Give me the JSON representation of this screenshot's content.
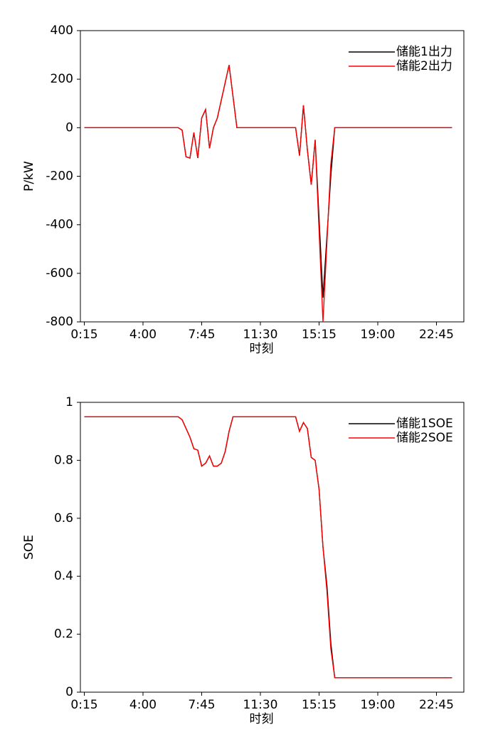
{
  "chart_data": [
    {
      "type": "line",
      "y_label": "P/kW",
      "x_label": "时刻",
      "x": [
        0.25,
        6.25,
        6.5,
        6.75,
        7.0,
        7.25,
        7.5,
        7.75,
        8.0,
        8.25,
        8.5,
        8.75,
        9.5,
        10.0,
        13.75,
        14.0,
        14.25,
        14.5,
        14.75,
        15.0,
        15.5,
        16.0,
        16.25,
        23.75
      ],
      "series": [
        {
          "name": "储能1出力",
          "color": "#000000",
          "values": [
            0,
            0,
            -10,
            -120,
            -125,
            -20,
            -125,
            40,
            75,
            -85,
            0,
            40,
            258,
            0,
            0,
            -115,
            92,
            -90,
            -235,
            -50,
            -700,
            -200,
            0,
            0
          ]
        },
        {
          "name": "储能2出力",
          "color": "#ff0000",
          "values": [
            0,
            0,
            -10,
            -120,
            -125,
            -20,
            -125,
            40,
            75,
            -85,
            0,
            40,
            258,
            0,
            0,
            -115,
            92,
            -90,
            -235,
            -50,
            -800,
            -150,
            0,
            0
          ]
        }
      ],
      "xlim": [
        0,
        24.5
      ],
      "xticks": [
        {
          "value": 0.25,
          "label": "0:15"
        },
        {
          "value": 4,
          "label": "4:00"
        },
        {
          "value": 7.75,
          "label": "7:45"
        },
        {
          "value": 11.5,
          "label": "11:30"
        },
        {
          "value": 15.25,
          "label": "15:15"
        },
        {
          "value": 19,
          "label": "19:00"
        },
        {
          "value": 22.75,
          "label": "22:45"
        }
      ],
      "ylim": [
        -800,
        400
      ],
      "yticks": [
        -800,
        -600,
        -400,
        -200,
        0,
        200,
        400
      ],
      "legend": "upper right"
    },
    {
      "type": "line",
      "y_label": "SOE",
      "x_label": "时刻",
      "x": [
        0.25,
        6.25,
        6.5,
        7.0,
        7.25,
        7.5,
        7.75,
        8.0,
        8.25,
        8.5,
        8.75,
        9.0,
        9.25,
        9.5,
        9.75,
        13.75,
        14.0,
        14.25,
        14.5,
        14.75,
        15.0,
        15.25,
        15.5,
        15.75,
        16.0,
        16.25,
        23.75
      ],
      "series": [
        {
          "name": "储能1SOE",
          "color": "#000000",
          "values": [
            0.95,
            0.95,
            0.94,
            0.88,
            0.84,
            0.835,
            0.78,
            0.79,
            0.815,
            0.78,
            0.78,
            0.79,
            0.83,
            0.9,
            0.95,
            0.95,
            0.9,
            0.93,
            0.91,
            0.81,
            0.8,
            0.7,
            0.5,
            0.37,
            0.17,
            0.05,
            0.05
          ]
        },
        {
          "name": "储能2SOE",
          "color": "#ff0000",
          "values": [
            0.95,
            0.95,
            0.94,
            0.88,
            0.84,
            0.835,
            0.78,
            0.79,
            0.815,
            0.78,
            0.78,
            0.79,
            0.83,
            0.9,
            0.95,
            0.95,
            0.9,
            0.93,
            0.91,
            0.81,
            0.8,
            0.7,
            0.5,
            0.35,
            0.15,
            0.05,
            0.05
          ]
        }
      ],
      "xlim": [
        0,
        24.5
      ],
      "xticks": [
        {
          "value": 0.25,
          "label": "0:15"
        },
        {
          "value": 4,
          "label": "4:00"
        },
        {
          "value": 7.75,
          "label": "7:45"
        },
        {
          "value": 11.5,
          "label": "11:30"
        },
        {
          "value": 15.25,
          "label": "15:15"
        },
        {
          "value": 19,
          "label": "19:00"
        },
        {
          "value": 22.75,
          "label": "22:45"
        }
      ],
      "ylim": [
        0,
        1
      ],
      "yticks": [
        0,
        0.2,
        0.4,
        0.6,
        0.8,
        1
      ],
      "legend": "upper right"
    }
  ]
}
